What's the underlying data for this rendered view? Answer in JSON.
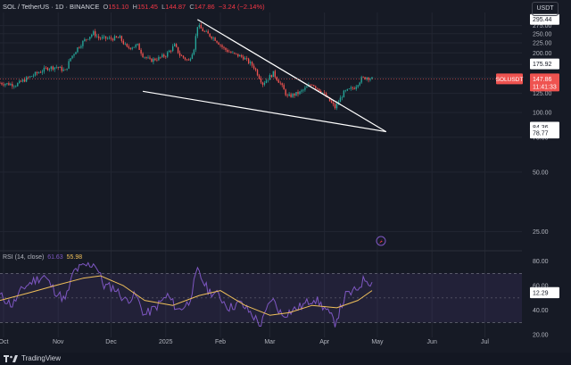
{
  "header": {
    "symbol": "SOL / TetherUS · 1D · BINANCE",
    "open_label": "O",
    "open": "151.10",
    "high_label": "H",
    "high": "151.45",
    "low_label": "L",
    "low": "144.87",
    "close_label": "C",
    "close": "147.86",
    "change": "−3.24 (−2.14%)"
  },
  "currency_button": "USDT",
  "rsi_header": {
    "label": "RSI (14, close)",
    "rsi": "61.63",
    "ma": "55.98"
  },
  "footer": {
    "brand": "TradingView"
  },
  "colors": {
    "bg": "#161a25",
    "up": "#26a69a",
    "down": "#ef5350",
    "rsi": "#7e57c2",
    "rsi_ma": "#f0c05a",
    "wedge": "#ffffff"
  },
  "chart_data": [
    {
      "type": "candlestick",
      "y_scale": "log",
      "ylim": [
        22,
        320
      ],
      "y_ticks": [
        25,
        50,
        75,
        100,
        125,
        150,
        175,
        200,
        225,
        250,
        275
      ],
      "x_ticks": [
        "Oct",
        "Nov",
        "Dec",
        "2025",
        "Feb",
        "Mar",
        "Apr",
        "May",
        "Jun",
        "Jul"
      ],
      "x_range": [
        "2024-09-29",
        "2025-07-22"
      ],
      "price_path": [
        [
          "2024-09-29",
          141
        ],
        [
          "2024-10-08",
          138
        ],
        [
          "2024-10-14",
          148
        ],
        [
          "2024-10-20",
          158
        ],
        [
          "2024-10-26",
          168
        ],
        [
          "2024-10-31",
          170
        ],
        [
          "2024-11-05",
          162
        ],
        [
          "2024-11-08",
          188
        ],
        [
          "2024-11-12",
          212
        ],
        [
          "2024-11-16",
          232
        ],
        [
          "2024-11-21",
          252
        ],
        [
          "2024-11-24",
          238
        ],
        [
          "2024-11-30",
          236
        ],
        [
          "2024-12-06",
          238
        ],
        [
          "2024-12-10",
          212
        ],
        [
          "2024-12-16",
          218
        ],
        [
          "2024-12-19",
          195
        ],
        [
          "2024-12-23",
          183
        ],
        [
          "2024-12-28",
          188
        ],
        [
          "2025-01-01",
          195
        ],
        [
          "2025-01-06",
          218
        ],
        [
          "2025-01-09",
          195
        ],
        [
          "2025-01-14",
          182
        ],
        [
          "2025-01-17",
          212
        ],
        [
          "2025-01-19",
          275
        ],
        [
          "2025-01-23",
          255
        ],
        [
          "2025-01-26",
          245
        ],
        [
          "2025-01-29",
          235
        ],
        [
          "2025-02-03",
          210
        ],
        [
          "2025-02-08",
          198
        ],
        [
          "2025-02-14",
          190
        ],
        [
          "2025-02-20",
          170
        ],
        [
          "2025-02-25",
          140
        ],
        [
          "2025-03-03",
          158
        ],
        [
          "2025-03-07",
          140
        ],
        [
          "2025-03-11",
          120
        ],
        [
          "2025-03-18",
          126
        ],
        [
          "2025-03-25",
          140
        ],
        [
          "2025-03-31",
          126
        ],
        [
          "2025-04-07",
          106
        ],
        [
          "2025-04-12",
          126
        ],
        [
          "2025-04-18",
          134
        ],
        [
          "2025-04-22",
          148
        ],
        [
          "2025-04-25",
          151
        ],
        [
          "2025-04-28",
          147.86
        ]
      ],
      "wedge_upper": [
        [
          "2025-01-19",
          295
        ],
        [
          "2025-05-06",
          80
        ]
      ],
      "wedge_lower": [
        [
          "2024-12-19",
          128
        ],
        [
          "2025-05-06",
          80
        ]
      ],
      "price_labels": [
        {
          "value": 295.44,
          "text": "295.44"
        },
        {
          "value": 175.92,
          "text": "175.92"
        },
        {
          "value": 147.86,
          "text": "147.86",
          "tag": "SOLUSDT",
          "countdown": "11:41:33",
          "highlight": true
        },
        {
          "value": 84.36,
          "text": "84.36"
        },
        {
          "value": 78.77,
          "text": "78.77"
        },
        {
          "value": 12.34,
          "text": "12.34"
        },
        {
          "value": 12.29,
          "text": "12.29"
        }
      ]
    },
    {
      "type": "line",
      "title": "RSI (14, close)",
      "ylim": [
        18,
        84
      ],
      "y_ticks": [
        20,
        40,
        60,
        80
      ],
      "bands": [
        30,
        50,
        70
      ],
      "series": [
        {
          "name": "RSI",
          "values": [
            [
              "2024-09-29",
              52
            ],
            [
              "2024-10-06",
              44
            ],
            [
              "2024-10-12",
              58
            ],
            [
              "2024-10-18",
              64
            ],
            [
              "2024-10-24",
              68
            ],
            [
              "2024-10-30",
              56
            ],
            [
              "2024-11-05",
              48
            ],
            [
              "2024-11-10",
              72
            ],
            [
              "2024-11-16",
              76
            ],
            [
              "2024-11-22",
              78
            ],
            [
              "2024-11-27",
              60
            ],
            [
              "2024-12-03",
              58
            ],
            [
              "2024-12-09",
              48
            ],
            [
              "2024-12-15",
              52
            ],
            [
              "2024-12-20",
              36
            ],
            [
              "2024-12-26",
              42
            ],
            [
              "2025-01-02",
              52
            ],
            [
              "2025-01-08",
              40
            ],
            [
              "2025-01-14",
              46
            ],
            [
              "2025-01-19",
              72
            ],
            [
              "2025-01-25",
              56
            ],
            [
              "2025-01-31",
              52
            ],
            [
              "2025-02-06",
              42
            ],
            [
              "2025-02-12",
              46
            ],
            [
              "2025-02-18",
              38
            ],
            [
              "2025-02-24",
              28
            ],
            [
              "2025-03-02",
              50
            ],
            [
              "2025-03-08",
              36
            ],
            [
              "2025-03-14",
              40
            ],
            [
              "2025-03-20",
              44
            ],
            [
              "2025-03-26",
              50
            ],
            [
              "2025-04-01",
              42
            ],
            [
              "2025-04-07",
              30
            ],
            [
              "2025-04-13",
              52
            ],
            [
              "2025-04-19",
              56
            ],
            [
              "2025-04-24",
              66
            ],
            [
              "2025-04-28",
              61.63
            ]
          ]
        },
        {
          "name": "RSI MA",
          "values": [
            [
              "2024-09-29",
              48
            ],
            [
              "2024-10-15",
              54
            ],
            [
              "2024-10-30",
              60
            ],
            [
              "2024-11-15",
              66
            ],
            [
              "2024-11-25",
              68
            ],
            [
              "2024-12-08",
              60
            ],
            [
              "2024-12-20",
              48
            ],
            [
              "2025-01-05",
              44
            ],
            [
              "2025-01-20",
              52
            ],
            [
              "2025-02-01",
              56
            ],
            [
              "2025-02-15",
              44
            ],
            [
              "2025-03-01",
              36
            ],
            [
              "2025-03-12",
              38
            ],
            [
              "2025-03-25",
              44
            ],
            [
              "2025-04-08",
              42
            ],
            [
              "2025-04-20",
              48
            ],
            [
              "2025-04-28",
              55.98
            ]
          ]
        }
      ]
    }
  ]
}
